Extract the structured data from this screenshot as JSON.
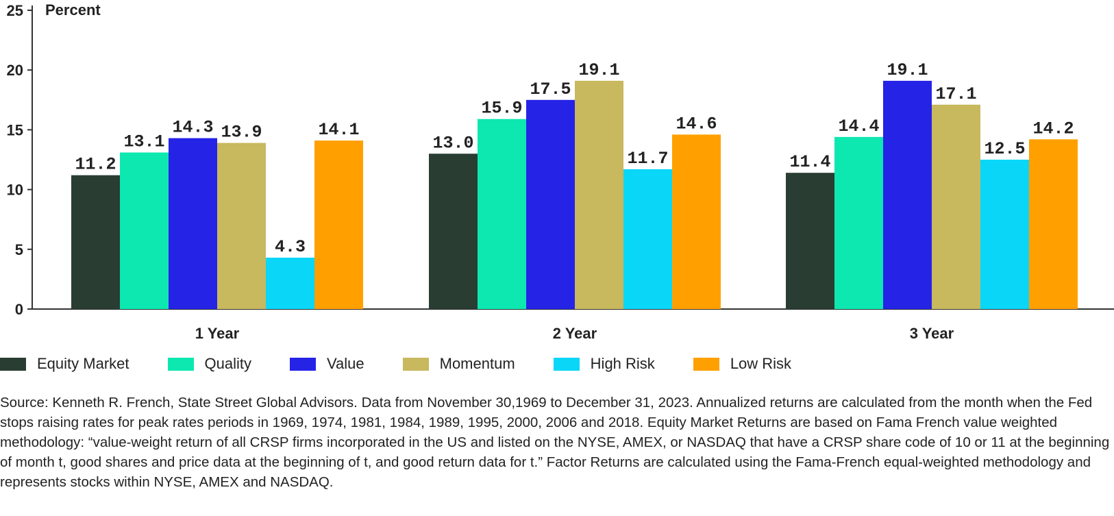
{
  "chart_data": {
    "type": "bar",
    "ylabel": "Percent",
    "ylim": [
      0,
      25
    ],
    "yticks": [
      0,
      5,
      10,
      15,
      20,
      25
    ],
    "categories": [
      "1 Year",
      "2 Year",
      "3 Year"
    ],
    "series": [
      {
        "name": "Equity Market",
        "color": "#2a3d33",
        "values": [
          11.2,
          13.0,
          11.4
        ],
        "labels": [
          "11.2",
          "13.0",
          "11.4"
        ]
      },
      {
        "name": "Quality",
        "color": "#0de8b0",
        "values": [
          13.1,
          15.9,
          14.4
        ],
        "labels": [
          "13.1",
          "15.9",
          "14.4"
        ]
      },
      {
        "name": "Value",
        "color": "#2523e6",
        "values": [
          14.3,
          17.5,
          19.1
        ],
        "labels": [
          "14.3",
          "17.5",
          "19.1"
        ]
      },
      {
        "name": "Momentum",
        "color": "#c8b85e",
        "values": [
          13.9,
          19.1,
          17.1
        ],
        "labels": [
          "13.9",
          "19.1",
          "17.1"
        ]
      },
      {
        "name": "High Risk",
        "color": "#0ad6f8",
        "values": [
          4.3,
          11.7,
          12.5
        ],
        "labels": [
          "4.3",
          "11.7",
          "12.5"
        ]
      },
      {
        "name": "Low Risk",
        "color": "#ffa000",
        "values": [
          14.1,
          14.6,
          14.2
        ],
        "labels": [
          "14.1",
          "14.6",
          "14.2"
        ]
      }
    ],
    "legend_position": "bottom",
    "grid": false
  },
  "source_text": "Source: Kenneth R. French, State Street Global Advisors. Data from November 30,1969 to December 31, 2023. Annualized returns are calculated from the month when the Fed stops raising rates for peak rates periods in 1969, 1974, 1981, 1984, 1989, 1995, 2000, 2006 and 2018. Equity Market Returns are based on Fama French value weighted methodology: “value-weight return of all CRSP firms incorporated in the US and listed on the NYSE, AMEX, or NASDAQ that have a CRSP share code of 10 or 11 at the beginning of month t, good shares and price data at the beginning of t, and good return data for t.” Factor Returns are calculated using the Fama-French equal-weighted methodology and represents stocks within NYSE, AMEX and NASDAQ."
}
